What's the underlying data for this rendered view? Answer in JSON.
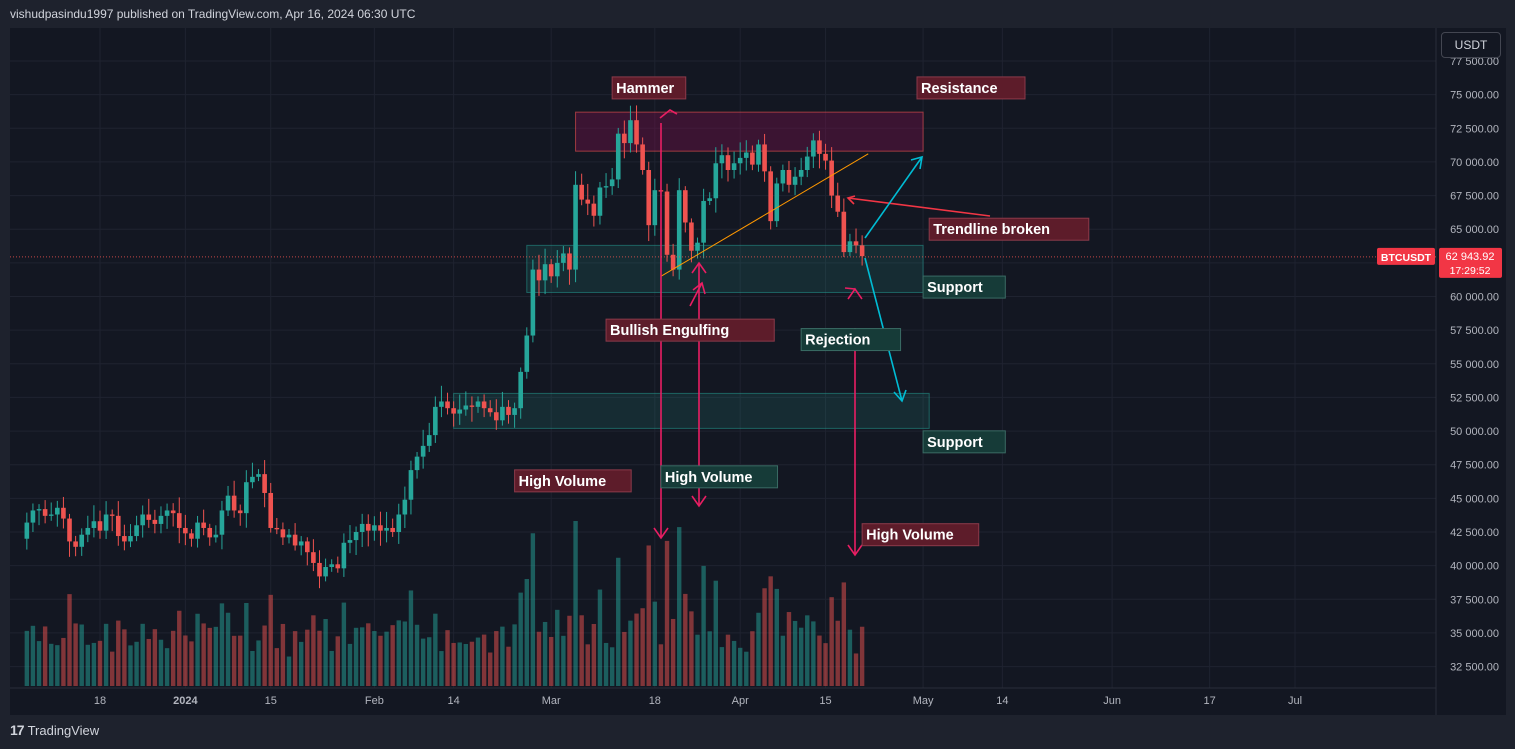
{
  "header": {
    "published": "vishudpasindu1997 published on TradingView.com, Apr 16, 2024 06:30 UTC"
  },
  "footer": {
    "brand": "TradingView",
    "logo_icon": "tradingview-logo-icon"
  },
  "currency_button": "USDT",
  "colors": {
    "bg": "#131722",
    "up": "#26a69a",
    "down": "#ef5350",
    "grid": "#1e222d",
    "text": "#b2b5be",
    "magenta": "#e91e63",
    "cyan": "#00bcd4",
    "orange": "#ff9800"
  },
  "price_badge": {
    "symbol": "BTCUSDT",
    "price": "62 943.92",
    "countdown": "17:29:52"
  },
  "chart_data": {
    "type": "candlestick",
    "symbol": "BTCUSDT",
    "y_ticks": [
      "77 500.00",
      "75 000.00",
      "72 500.00",
      "70 000.00",
      "67 500.00",
      "65 000.00",
      "62 500.00",
      "60 000.00",
      "57 500.00",
      "55 000.00",
      "52 500.00",
      "50 000.00",
      "47 500.00",
      "45 000.00",
      "42 500.00",
      "40 000.00",
      "37 500.00",
      "35 000.00",
      "32 500.00"
    ],
    "y_tick_values": [
      77500,
      75000,
      72500,
      70000,
      67500,
      65000,
      62500,
      60000,
      57500,
      55000,
      52500,
      50000,
      47500,
      45000,
      42500,
      40000,
      37500,
      35000,
      32500
    ],
    "ylim": [
      31000,
      79000
    ],
    "x_ticks": [
      "18",
      "2024",
      "15",
      "Feb",
      "14",
      "Mar",
      "18",
      "Apr",
      "15",
      "May",
      "14",
      "Jun",
      "17",
      "Jul"
    ],
    "x_tick_dates": [
      "2023-12-18",
      "2024-01-01",
      "2024-01-15",
      "2024-02-01",
      "2024-02-14",
      "2024-03-01",
      "2024-03-18",
      "2024-04-01",
      "2024-04-15",
      "2024-05-01",
      "2024-05-14",
      "2024-06-01",
      "2024-06-17",
      "2024-07-01"
    ],
    "first_candle_date": "2023-12-06",
    "closes": [
      43200,
      44100,
      44200,
      43700,
      43800,
      44300,
      43500,
      41800,
      41400,
      42300,
      42800,
      43300,
      42600,
      43800,
      43700,
      42200,
      41800,
      42200,
      43000,
      43800,
      43400,
      43100,
      43700,
      44100,
      43900,
      42800,
      42400,
      42000,
      43200,
      42800,
      42100,
      42300,
      44100,
      45200,
      44100,
      43900,
      46200,
      46600,
      46800,
      45400,
      42800,
      42700,
      42100,
      42300,
      41500,
      41800,
      41000,
      40200,
      39200,
      39900,
      40100,
      39800,
      41700,
      41900,
      42500,
      43100,
      42600,
      43000,
      42600,
      42800,
      42500,
      43800,
      44900,
      47100,
      48100,
      48900,
      49700,
      51800,
      52200,
      51700,
      51300,
      51600,
      51900,
      51800,
      52200,
      51700,
      51400,
      50800,
      51800,
      51200,
      51700,
      54400,
      57100,
      62000,
      61200,
      62400,
      61500,
      62500,
      63200,
      62000,
      68300,
      67200,
      66900,
      66000,
      68100,
      68200,
      68700,
      72100,
      71400,
      73100,
      71300,
      69400,
      65300,
      67900,
      67800,
      63100,
      62000,
      67900,
      65500,
      63400,
      64000,
      67100,
      67300,
      69900,
      70500,
      69400,
      69900,
      70300,
      70700,
      69800,
      71300,
      69300,
      65600,
      68400,
      69400,
      68300,
      68900,
      69400,
      70400,
      71600,
      70600,
      70100,
      67500,
      66300,
      63300,
      64100,
      63800,
      63000
    ],
    "trendline": {
      "start": [
        "2024-03-19",
        61500
      ],
      "end": [
        "2024-04-22",
        70600
      ]
    },
    "zones": [
      {
        "name": "resistance",
        "x": [
          "2024-03-05",
          "2024-05-01"
        ],
        "y": [
          70800,
          73700
        ]
      },
      {
        "name": "support-upper",
        "x": [
          "2024-02-26",
          "2024-05-01"
        ],
        "y": [
          60300,
          63800
        ]
      },
      {
        "name": "support-lower",
        "x": [
          "2024-02-14",
          "2024-05-02"
        ],
        "y": [
          50200,
          52800
        ]
      }
    ],
    "labels": [
      {
        "text": "Hammer",
        "theme": "red",
        "x": "2024-03-11",
        "y": 75500
      },
      {
        "text": "Resistance",
        "theme": "red",
        "x": "2024-04-30",
        "y": 75500
      },
      {
        "text": "Trendline broken",
        "theme": "red",
        "x": "2024-05-02",
        "y": 65000
      },
      {
        "text": "Support",
        "theme": "teal",
        "x": "2024-05-01",
        "y": 60700
      },
      {
        "text": "Bullish Engulfing",
        "theme": "red",
        "x": "2024-03-10",
        "y": 57500
      },
      {
        "text": "Rejection",
        "theme": "teal",
        "x": "2024-04-11",
        "y": 56800
      },
      {
        "text": "Support",
        "theme": "teal",
        "x": "2024-05-01",
        "y": 49200
      },
      {
        "text": "High Volume",
        "theme": "red",
        "x": "2024-02-24",
        "y": 46300
      },
      {
        "text": "High Volume",
        "theme": "teal",
        "x": "2024-03-19",
        "y": 46600
      },
      {
        "text": "High Volume",
        "theme": "red",
        "x": "2024-04-21",
        "y": 42300
      }
    ],
    "legend": "none",
    "grid": true
  }
}
